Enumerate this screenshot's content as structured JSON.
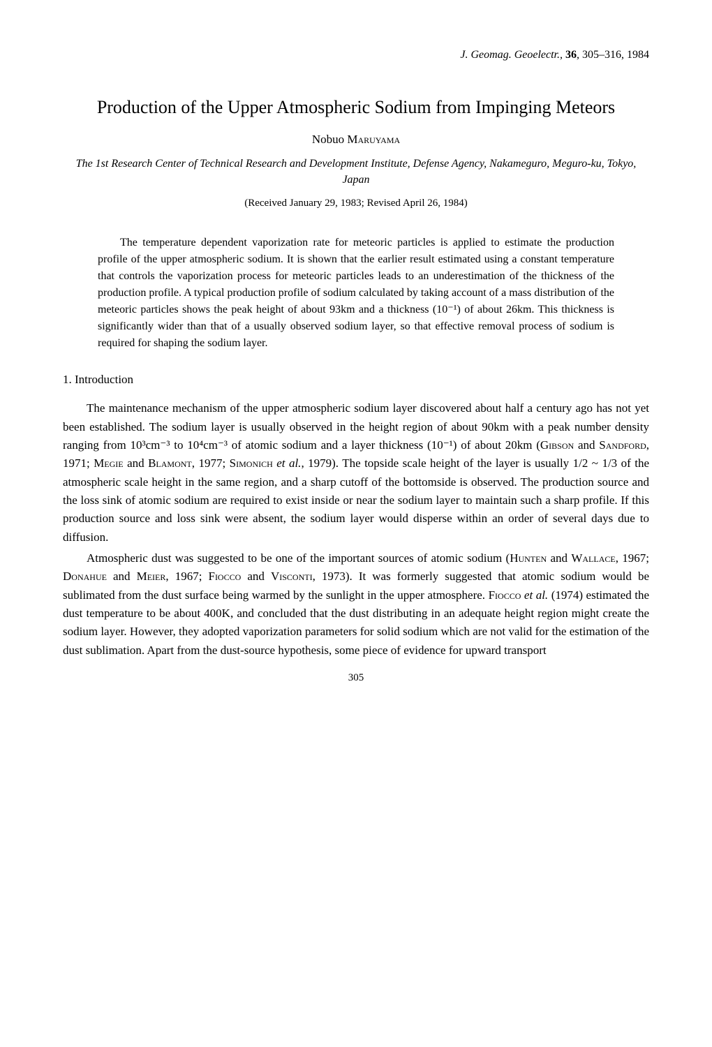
{
  "journal": {
    "name": "J. Geomag. Geoelectr.",
    "volume": "36",
    "pages": "305–316, 1984"
  },
  "title": "Production of the Upper Atmospheric Sodium from Impinging Meteors",
  "author": {
    "given": "Nobuo",
    "surname": "Maruyama"
  },
  "affiliation": "The 1st Research Center of Technical Research and Development Institute, Defense Agency, Nakameguro, Meguro-ku, Tokyo, Japan",
  "received": "(Received January 29, 1983; Revised April 26, 1984)",
  "abstract": "The temperature dependent vaporization rate for meteoric particles is applied to estimate the production profile of the upper atmospheric sodium. It is shown that the earlier result estimated using a constant temperature that controls the vaporization process for meteoric particles leads to an underestimation of the thickness of the production profile. A typical production profile of sodium calculated by taking account of a mass distribution of the meteoric particles shows the peak height of about 93km and a thickness (10⁻¹) of about 26km. This thickness is significantly wider than that of a usually observed sodium layer, so that effective removal process of sodium is required for shaping the sodium layer.",
  "section1": {
    "heading": "1.  Introduction",
    "para1_a": "The maintenance mechanism of the upper atmospheric sodium layer discovered about half a century ago has not yet been established. The sodium layer is usually observed in the height region of about 90km with a peak number density ranging from 10³cm⁻³ to 10⁴cm⁻³ of atomic sodium and a layer thickness (10⁻¹) of about 20km (",
    "gibson": "Gibson",
    "and1": " and ",
    "sandford": "Sandford",
    "ref1": ", 1971; ",
    "megie": "Megie",
    "and2": " and ",
    "blamont": "Blamont",
    "ref2": ", 1977; ",
    "simonich": "Simonich",
    "etal": " et al.",
    "ref3": ", 1979). The topside scale height of the layer is usually 1/2 ~ 1/3 of the atmospheric scale height in the same region, and a sharp cutoff of the bottomside is observed. The production source and the loss sink of atomic sodium are required to exist inside or near the sodium layer to maintain such a sharp profile. If this production source and loss sink were absent, the sodium layer would disperse within an order of several days due to diffusion.",
    "para2_a": "Atmospheric dust was suggested to be one of the important sources of atomic sodium (",
    "hunten": "Hunten",
    "and3": " and ",
    "wallace": "Wallace",
    "ref4": ", 1967; ",
    "donahue": "Donahue",
    "and4": " and ",
    "meier": "Meier",
    "ref5": ", 1967; ",
    "fiocco": "Fiocco",
    "and5": " and ",
    "visconti": "Visconti",
    "ref6": ", 1973). It was formerly suggested that atomic sodium would be sublimated from the dust surface being warmed by the sunlight in the upper atmosphere. ",
    "fiocco2": "Fiocco",
    "etal2": " et al.",
    "ref7": " (1974) estimated the dust temperature to be about 400K, and concluded that the dust distributing in an adequate height region might create the sodium layer. However, they adopted vaporization parameters for solid sodium which are not valid for the estimation of the dust sublimation. Apart from the dust-source hypothesis, some piece of evidence for upward transport"
  },
  "pagenum": "305"
}
